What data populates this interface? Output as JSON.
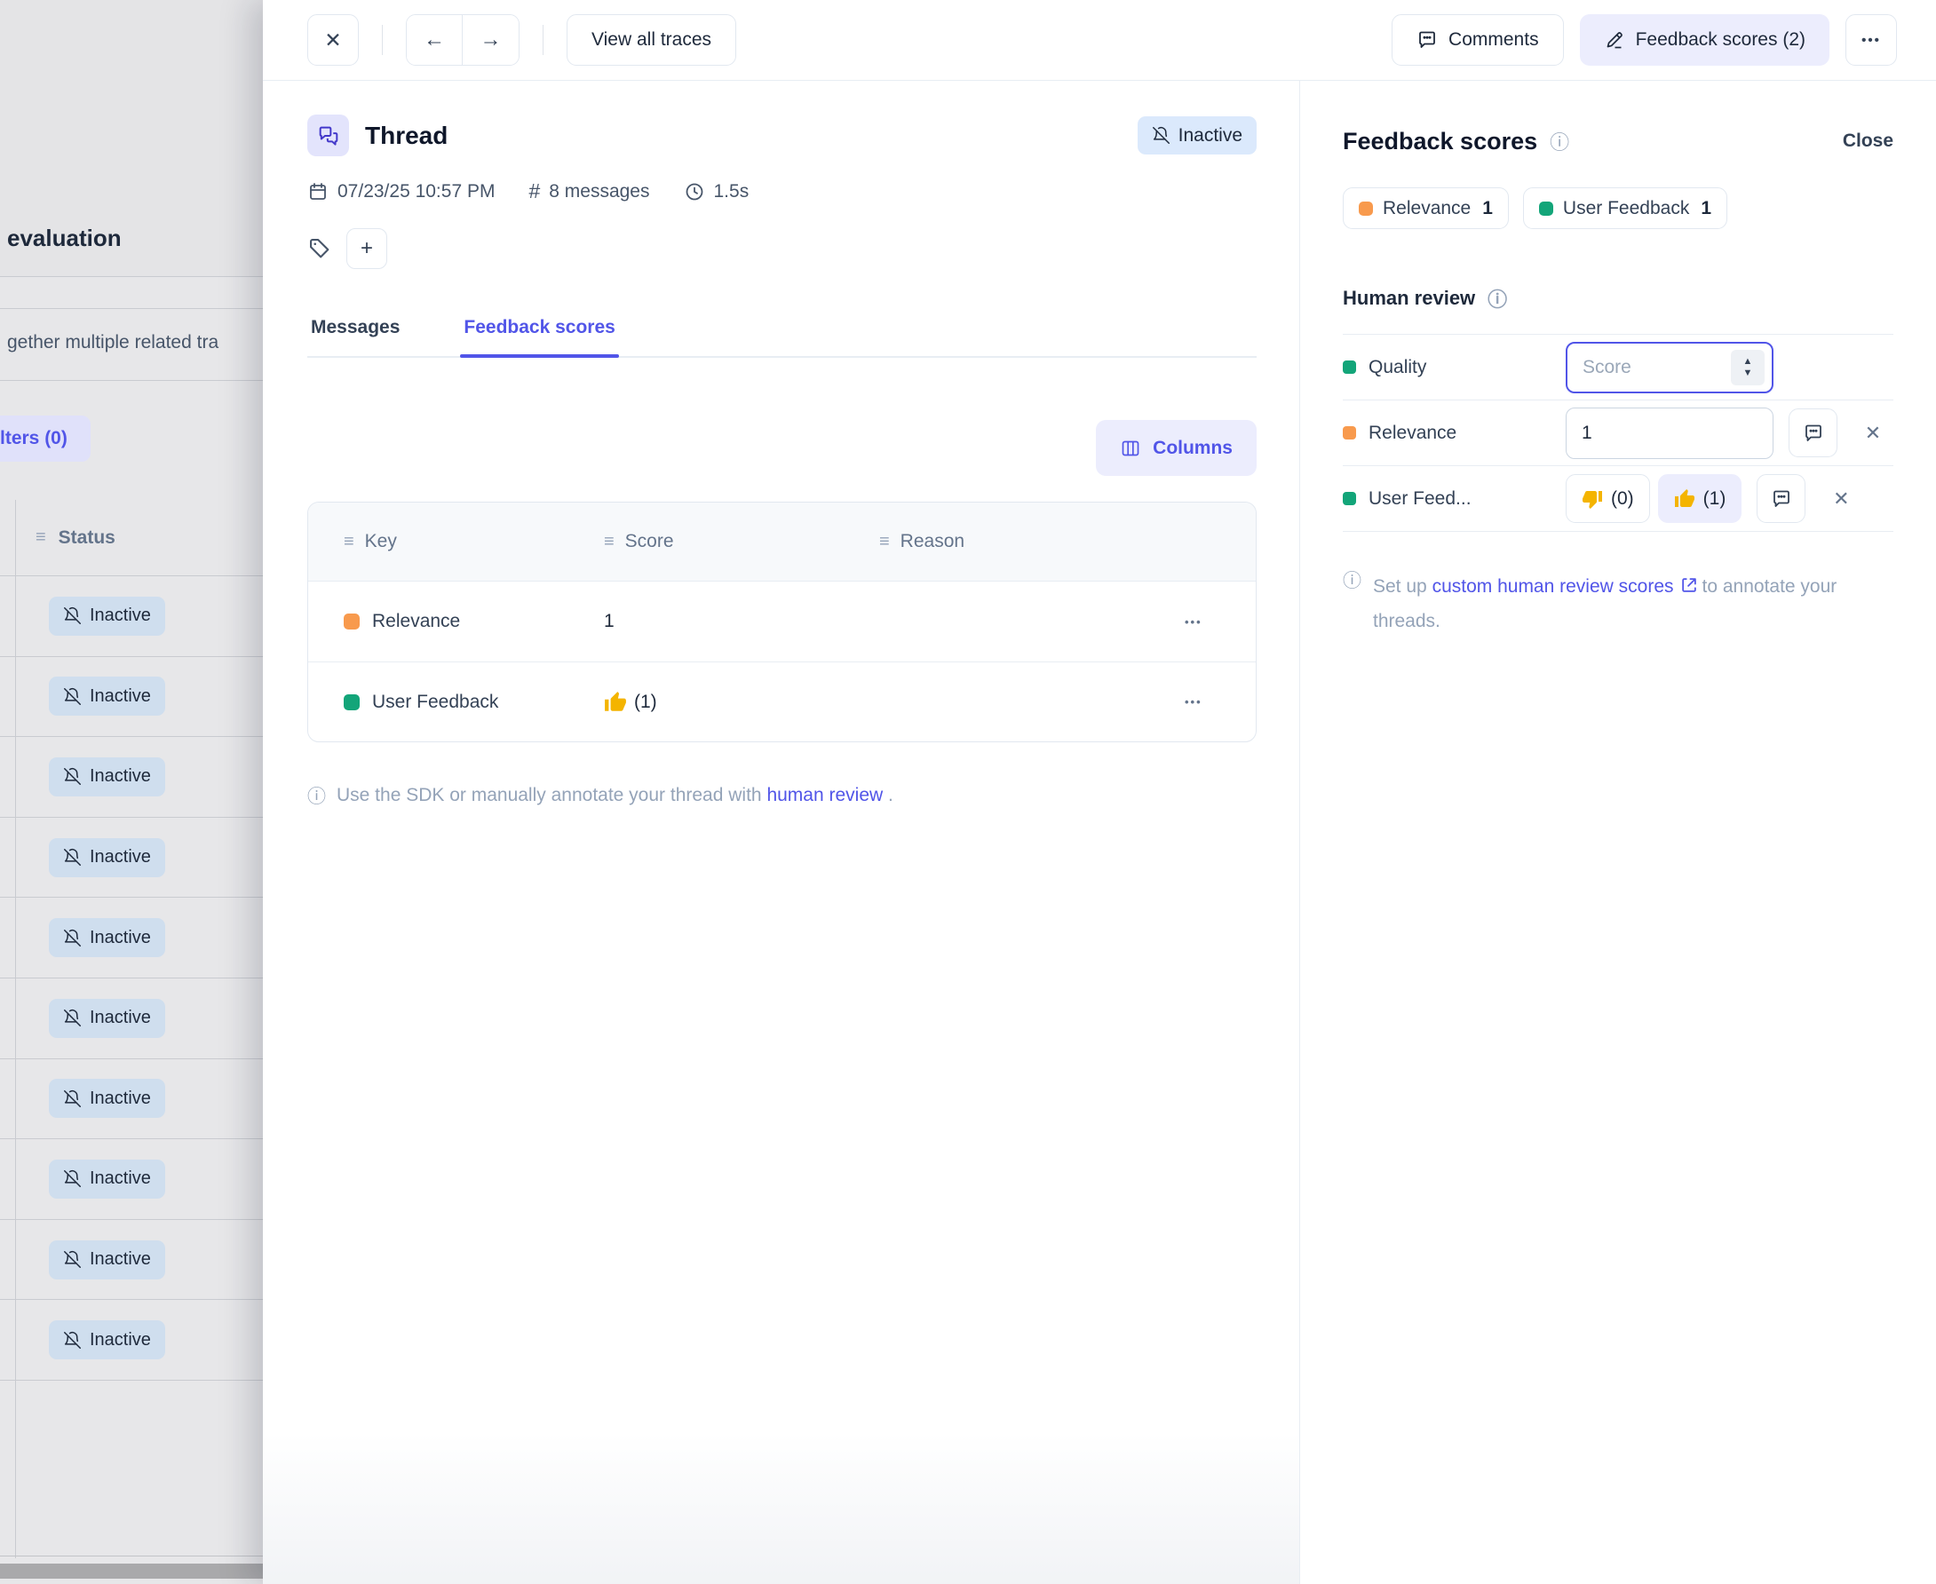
{
  "colors": {
    "accent": "#5155e8",
    "orange_dot": "#f89a4d",
    "green_dot": "#13a579",
    "inactive_badge_bg": "#dbe9fc",
    "bg_inactive_badge_bg": "#cfdeee"
  },
  "icons": {
    "close": "✕",
    "back": "←",
    "forward": "→",
    "more": "•••",
    "plus": "+",
    "hash": "#",
    "drag": "≡",
    "info": "ⓘ",
    "spin_up": "▲",
    "spin_down": "▼",
    "row_actions": "•••"
  },
  "background": {
    "title": "evaluation",
    "description": "gether multiple related tra",
    "filters_button": "lters (0)",
    "table": {
      "status_header": "Status",
      "rows": [
        {
          "status": "Inactive"
        },
        {
          "status": "Inactive"
        },
        {
          "status": "Inactive"
        },
        {
          "status": "Inactive"
        },
        {
          "status": "Inactive"
        },
        {
          "status": "Inactive"
        },
        {
          "status": "Inactive"
        },
        {
          "status": "Inactive"
        },
        {
          "status": "Inactive"
        },
        {
          "status": "Inactive"
        }
      ]
    }
  },
  "toolbar": {
    "view_all_traces": "View all traces",
    "comments": "Comments",
    "feedback_scores": "Feedback scores (2)"
  },
  "thread": {
    "title": "Thread",
    "status_badge": "Inactive",
    "timestamp": "07/23/25 10:57 PM",
    "messages_count": "8 messages",
    "duration": "1.5s"
  },
  "tabs": {
    "messages": "Messages",
    "feedback_scores": "Feedback scores"
  },
  "content": {
    "columns_button": "Columns",
    "table": {
      "headers": [
        "Key",
        "Score",
        "Reason"
      ],
      "rows": [
        {
          "key": "Relevance",
          "score": "1"
        },
        {
          "key": "User Feedback",
          "score_count": "(1)"
        }
      ]
    },
    "info": {
      "prefix": "Use the SDK or manually annotate your thread with",
      "link": "human review",
      "suffix": "."
    }
  },
  "panel": {
    "title": "Feedback scores",
    "close": "Close",
    "badges": [
      {
        "label": "Relevance",
        "value": "1"
      },
      {
        "label": "User Feedback",
        "value": "1"
      }
    ],
    "section": "Human review",
    "rows": {
      "quality": {
        "label": "Quality",
        "placeholder": "Score"
      },
      "relevance": {
        "label": "Relevance",
        "value": "1"
      },
      "user_feedback": {
        "label": "User Feed...",
        "down_count": "(0)",
        "up_count": "(1)"
      }
    },
    "note": {
      "prefix": "Set up",
      "link": "custom human review scores",
      "suffix": "to annotate your threads."
    }
  }
}
